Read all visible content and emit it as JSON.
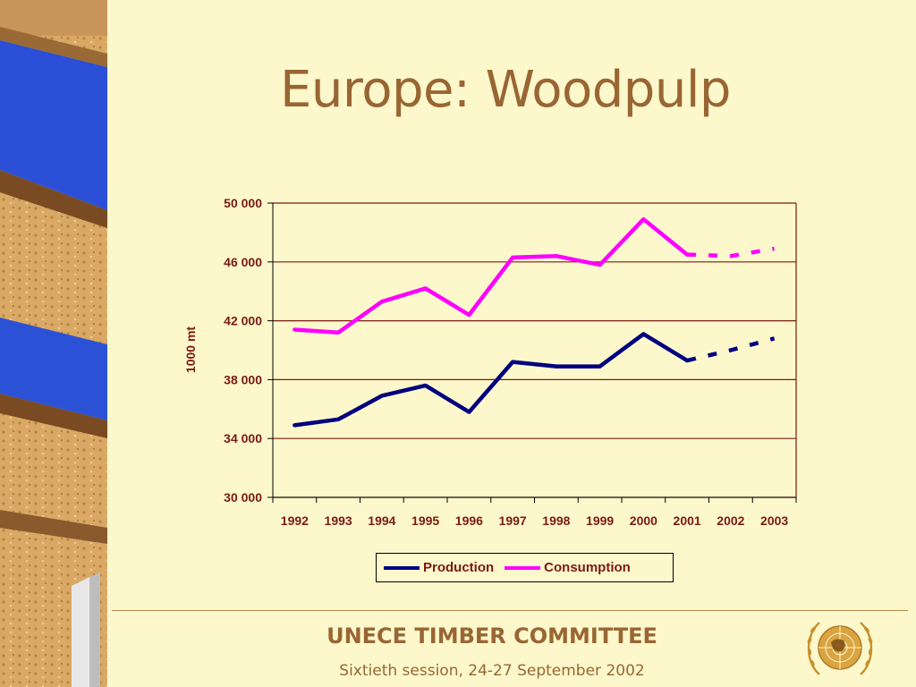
{
  "slide": {
    "title": "Europe: Woodpulp",
    "footer_org": "UNECE TIMBER COMMITTEE",
    "footer_session": "Sixtieth session, 24-27 September 2002"
  },
  "colors": {
    "background": "#fdf8cc",
    "title": "#996633",
    "production": "#000080",
    "consumption": "#ff00ff",
    "gridline": "#7a1a14",
    "axis_text": "#7a1a14"
  },
  "chart_data": {
    "type": "line",
    "title": "",
    "xlabel": "",
    "ylabel": "1000 mt",
    "ylim": [
      30000,
      50000
    ],
    "yticks": [
      30000,
      34000,
      38000,
      42000,
      46000,
      50000
    ],
    "ytick_labels": [
      "30 000",
      "34 000",
      "38 000",
      "42 000",
      "46 000",
      "50 000"
    ],
    "categories": [
      "1992",
      "1993",
      "1994",
      "1995",
      "1996",
      "1997",
      "1998",
      "1999",
      "2000",
      "2001",
      "2002",
      "2003"
    ],
    "grid": true,
    "legend_position": "bottom",
    "series": [
      {
        "name": "Production",
        "color": "#000080",
        "values": [
          34900,
          35300,
          36900,
          37600,
          35800,
          39200,
          38900,
          38900,
          41100,
          39300,
          40000,
          40800
        ],
        "forecast_from_index": 9
      },
      {
        "name": "Consumption",
        "color": "#ff00ff",
        "values": [
          41400,
          41200,
          43300,
          44200,
          42400,
          46300,
          46400,
          45800,
          48900,
          46500,
          46400,
          46900
        ],
        "forecast_from_index": 9
      }
    ]
  }
}
